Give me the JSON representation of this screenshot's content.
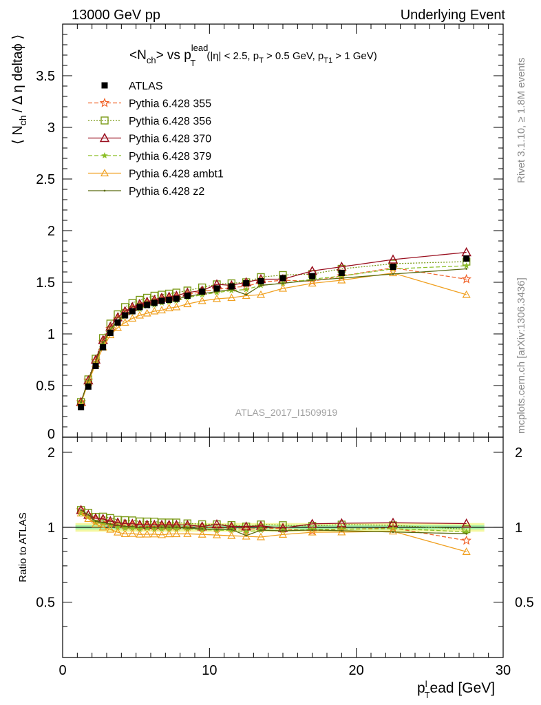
{
  "header": {
    "left": "13000 GeV pp",
    "right": "Underlying Event"
  },
  "side_text": {
    "rivet": "Rivet 3.1.10, ≥ 1.8M events",
    "mcplots": "mcplots.cern.ch [arXiv:1306.3436]"
  },
  "watermark": "ATLAS_2017_I1509919",
  "colors": {
    "ATLAS": "#000000",
    "p355": "#f0632a",
    "p356": "#7a9a16",
    "p370": "#9a1020",
    "p379": "#8cbf28",
    "ambt1": "#f0a020",
    "z2": "#5a6a10",
    "band_outer": "#f4f8a0",
    "band_inner": "#a8f0a8"
  },
  "chart_data": {
    "type": "line",
    "title_parts": {
      "main": "<N",
      "main_sub": "ch",
      "vs": "> vs p",
      "vs_sup": "lead",
      "vs_sub": "T",
      "cuts_a": "(|η| < 2.5, p",
      "cuts_a_sub": "T",
      "cuts_b": " > 0.5 GeV, p",
      "cuts_b_sub": "T1",
      "cuts_c": " > 1 GeV)"
    },
    "ylabel_parts": {
      "a": "⟨ N",
      "a_sub": "ch",
      "b": "/ Δ η deltaϕ ⟩"
    },
    "xlabel_parts": {
      "a": "p",
      "a_sup": "l",
      "a_sub": "T",
      "b": "ead [GeV]"
    },
    "ratio_ylabel": "Ratio to ATLAS",
    "xlim": [
      0,
      30
    ],
    "ylim": [
      0,
      4.0
    ],
    "ratio_ylim": [
      0.3,
      2.3
    ],
    "x_ticks": [
      "0",
      "10",
      "20",
      "30"
    ],
    "y_ticks": [
      "0",
      "0.5",
      "1",
      "1.5",
      "2",
      "2.5",
      "3",
      "3.5"
    ],
    "ratio_ticks": [
      "0.5",
      "1",
      "2"
    ],
    "x": [
      1.25,
      1.75,
      2.25,
      2.75,
      3.25,
      3.75,
      4.25,
      4.75,
      5.25,
      5.75,
      6.25,
      6.75,
      7.25,
      7.75,
      8.5,
      9.5,
      10.5,
      11.5,
      12.5,
      13.5,
      15.0,
      17.0,
      19.0,
      22.5,
      27.5
    ],
    "series": [
      {
        "name": "ATLAS",
        "key": "ATLAS",
        "values": [
          0.29,
          0.49,
          0.69,
          0.87,
          1.01,
          1.11,
          1.18,
          1.22,
          1.26,
          1.28,
          1.3,
          1.32,
          1.33,
          1.34,
          1.37,
          1.41,
          1.44,
          1.46,
          1.49,
          1.51,
          1.54,
          1.56,
          1.59,
          1.65,
          1.73
        ]
      },
      {
        "name": "Pythia 6.428 355",
        "key": "p355",
        "values": [
          0.34,
          0.55,
          0.74,
          0.92,
          1.05,
          1.14,
          1.2,
          1.24,
          1.27,
          1.29,
          1.31,
          1.33,
          1.34,
          1.35,
          1.38,
          1.41,
          1.43,
          1.45,
          1.46,
          1.5,
          1.52,
          1.51,
          1.56,
          1.64,
          1.53
        ]
      },
      {
        "name": "Pythia 6.428 356",
        "key": "p356",
        "values": [
          0.34,
          0.56,
          0.76,
          0.96,
          1.1,
          1.19,
          1.26,
          1.3,
          1.33,
          1.35,
          1.37,
          1.38,
          1.39,
          1.4,
          1.42,
          1.45,
          1.48,
          1.49,
          1.5,
          1.55,
          1.57,
          1.58,
          1.63,
          1.68,
          1.7
        ]
      },
      {
        "name": "Pythia 6.428 370",
        "key": "p370",
        "values": [
          0.34,
          0.55,
          0.75,
          0.94,
          1.07,
          1.16,
          1.22,
          1.26,
          1.29,
          1.31,
          1.33,
          1.35,
          1.36,
          1.37,
          1.4,
          1.42,
          1.48,
          1.47,
          1.5,
          1.53,
          1.53,
          1.61,
          1.65,
          1.72,
          1.79
        ]
      },
      {
        "name": "Pythia 6.428 379",
        "key": "p379",
        "values": [
          0.33,
          0.54,
          0.72,
          0.9,
          1.03,
          1.11,
          1.17,
          1.21,
          1.24,
          1.27,
          1.28,
          1.3,
          1.31,
          1.32,
          1.35,
          1.38,
          1.4,
          1.42,
          1.43,
          1.47,
          1.49,
          1.53,
          1.56,
          1.63,
          1.66
        ]
      },
      {
        "name": "Pythia 6.428 ambt1",
        "key": "ambt1",
        "values": [
          0.33,
          0.53,
          0.71,
          0.87,
          0.99,
          1.06,
          1.11,
          1.15,
          1.18,
          1.2,
          1.22,
          1.23,
          1.25,
          1.26,
          1.29,
          1.32,
          1.34,
          1.35,
          1.37,
          1.38,
          1.44,
          1.49,
          1.52,
          1.59,
          1.38
        ]
      },
      {
        "name": "Pythia 6.428 z2",
        "key": "z2",
        "values": [
          0.34,
          0.55,
          0.73,
          0.91,
          1.04,
          1.13,
          1.19,
          1.23,
          1.26,
          1.28,
          1.3,
          1.32,
          1.33,
          1.34,
          1.36,
          1.39,
          1.41,
          1.43,
          1.38,
          1.47,
          1.49,
          1.52,
          1.54,
          1.58,
          1.63
        ]
      }
    ],
    "legend_placement": "top-left"
  }
}
